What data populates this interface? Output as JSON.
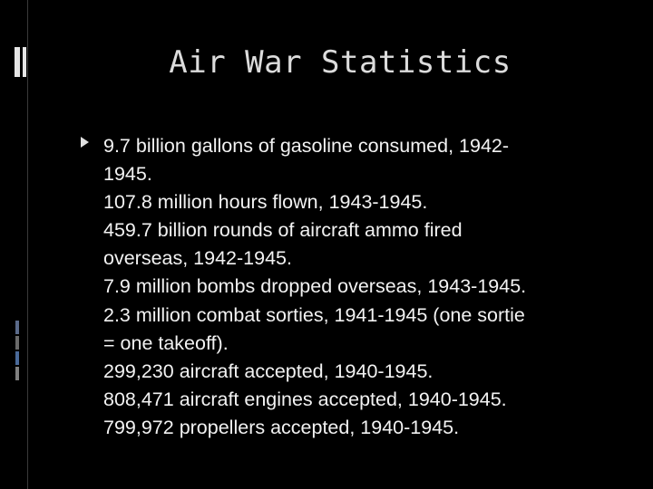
{
  "slide": {
    "title": "Air War Statistics",
    "bullet_lines": [
      "9.7 billion gallons of gasoline consumed, 1942-",
      "1945.",
      "107.8 million hours flown, 1943-1945.",
      "459.7 billion rounds of aircraft ammo fired",
      "overseas, 1942-1945.",
      "7.9 million bombs dropped overseas, 1943-1945.",
      "2.3 million combat sorties, 1941-1945 (one sortie",
      "= one takeoff).",
      "299,230 aircraft accepted, 1940-1945.",
      "808,471 aircraft engines accepted, 1940-1945.",
      "799,972 propellers accepted, 1940-1945."
    ]
  },
  "colors": {
    "background": "#000000",
    "text": "#f2f2f2",
    "title": "#dcdcdc",
    "accent_light": "#e6e6e6",
    "accent_1": "#5a6a8a",
    "accent_2": "#6a6a6a",
    "accent_3": "#4a6a9a",
    "accent_4": "#808080"
  }
}
